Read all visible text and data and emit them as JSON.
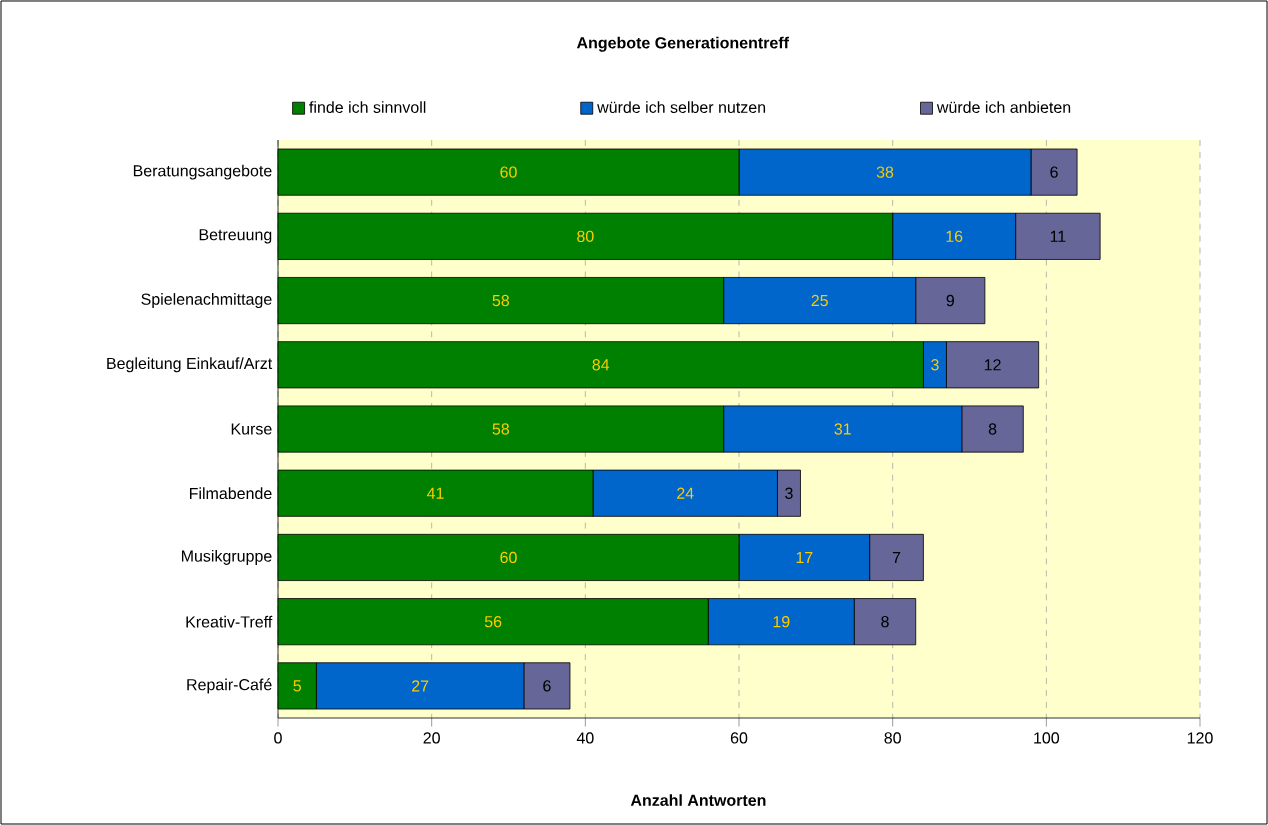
{
  "chart_data": {
    "type": "bar",
    "orientation": "horizontal",
    "stacked": true,
    "title": "Angebote Generationentreff",
    "xlabel": "Anzahl Antworten",
    "categories": [
      "Beratungsangebote",
      "Betreuung",
      "Spielenachmittage",
      "Begleitung Einkauf/Arzt",
      "Kurse",
      "Filmabende",
      "Musikgruppe",
      "Kreativ-Treff",
      "Repair-Café"
    ],
    "series": [
      {
        "name": "finde ich sinnvoll",
        "color": "#008000",
        "values": [
          60,
          80,
          58,
          84,
          58,
          41,
          60,
          56,
          5
        ]
      },
      {
        "name": "würde ich selber nutzen",
        "color": "#0066cc",
        "values": [
          38,
          16,
          25,
          3,
          31,
          24,
          17,
          19,
          27
        ]
      },
      {
        "name": "würde ich anbieten",
        "color": "#666699",
        "values": [
          6,
          11,
          9,
          12,
          8,
          3,
          7,
          8,
          6
        ]
      }
    ],
    "xlim": [
      0,
      120
    ],
    "xticks": [
      0,
      20,
      40,
      60,
      80,
      100,
      120
    ],
    "grid": "x",
    "legend": "top",
    "data_labels": true
  }
}
